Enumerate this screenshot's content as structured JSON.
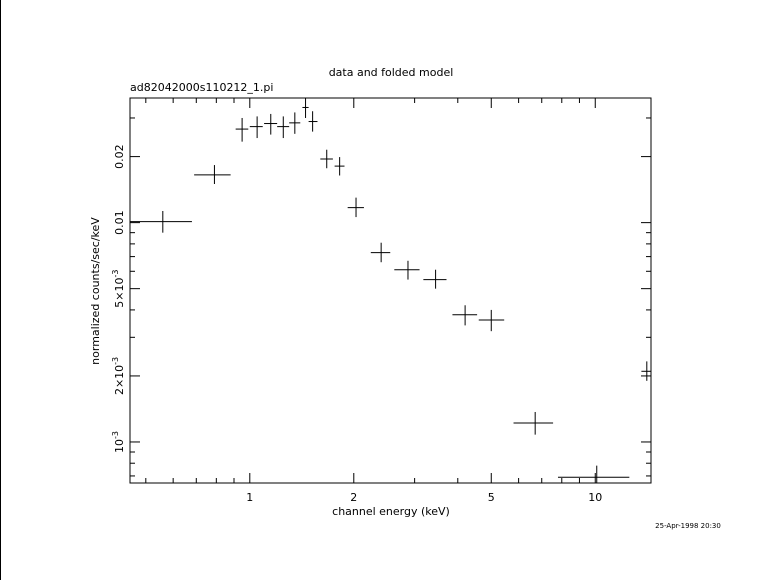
{
  "chart_data": {
    "type": "scatter",
    "title": "data and folded model",
    "subtitle": "ad82042000s110212_1.pi",
    "xlabel": "channel energy (keV)",
    "ylabel": "normalized counts/sec/keV",
    "x_scale": "log",
    "y_scale": "log",
    "xlim": [
      0.45,
      14.5
    ],
    "ylim": [
      0.00065,
      0.037
    ],
    "x_ticks": [
      {
        "value": 1,
        "label": "1"
      },
      {
        "value": 2,
        "label": "2"
      },
      {
        "value": 5,
        "label": "5"
      },
      {
        "value": 10,
        "label": "10"
      }
    ],
    "y_ticks": [
      {
        "value": 0.001,
        "label": "10^-3"
      },
      {
        "value": 0.002,
        "label": "2×10^-3"
      },
      {
        "value": 0.005,
        "label": "5×10^-3"
      },
      {
        "value": 0.01,
        "label": "0.01"
      },
      {
        "value": 0.02,
        "label": "0.02"
      }
    ],
    "series": [
      {
        "points": [
          {
            "x": 0.56,
            "xlo": 0.45,
            "xhi": 0.68,
            "y": 0.0101,
            "ylo": 0.009,
            "yhi": 0.0113
          },
          {
            "x": 0.79,
            "xlo": 0.69,
            "xhi": 0.88,
            "y": 0.0165,
            "ylo": 0.015,
            "yhi": 0.0183
          },
          {
            "x": 0.95,
            "xlo": 0.91,
            "xhi": 0.99,
            "y": 0.0267,
            "ylo": 0.0234,
            "yhi": 0.03
          },
          {
            "x": 1.05,
            "xlo": 1.0,
            "xhi": 1.09,
            "y": 0.0274,
            "ylo": 0.0243,
            "yhi": 0.0305
          },
          {
            "x": 1.15,
            "xlo": 1.1,
            "xhi": 1.2,
            "y": 0.0283,
            "ylo": 0.0252,
            "yhi": 0.0313
          },
          {
            "x": 1.25,
            "xlo": 1.2,
            "xhi": 1.3,
            "y": 0.0274,
            "ylo": 0.0243,
            "yhi": 0.0305
          },
          {
            "x": 1.35,
            "xlo": 1.3,
            "xhi": 1.4,
            "y": 0.0285,
            "ylo": 0.0254,
            "yhi": 0.0318
          },
          {
            "x": 1.45,
            "xlo": 1.42,
            "xhi": 1.48,
            "y": 0.0335,
            "ylo": 0.03,
            "yhi": 0.037
          },
          {
            "x": 1.52,
            "xlo": 1.48,
            "xhi": 1.57,
            "y": 0.0289,
            "ylo": 0.026,
            "yhi": 0.0322
          },
          {
            "x": 1.67,
            "xlo": 1.6,
            "xhi": 1.74,
            "y": 0.0195,
            "ylo": 0.0177,
            "yhi": 0.0215
          },
          {
            "x": 1.82,
            "xlo": 1.76,
            "xhi": 1.88,
            "y": 0.0181,
            "ylo": 0.0164,
            "yhi": 0.0199
          },
          {
            "x": 2.03,
            "xlo": 1.92,
            "xhi": 2.14,
            "y": 0.0117,
            "ylo": 0.0106,
            "yhi": 0.013
          },
          {
            "x": 2.4,
            "xlo": 2.24,
            "xhi": 2.55,
            "y": 0.0073,
            "ylo": 0.0066,
            "yhi": 0.0081
          },
          {
            "x": 2.87,
            "xlo": 2.62,
            "xhi": 3.1,
            "y": 0.0061,
            "ylo": 0.0055,
            "yhi": 0.0067
          },
          {
            "x": 3.45,
            "xlo": 3.18,
            "xhi": 3.71,
            "y": 0.0055,
            "ylo": 0.005,
            "yhi": 0.0061
          },
          {
            "x": 4.2,
            "xlo": 3.86,
            "xhi": 4.55,
            "y": 0.0038,
            "ylo": 0.0034,
            "yhi": 0.0042
          },
          {
            "x": 5.0,
            "xlo": 4.6,
            "xhi": 5.45,
            "y": 0.0036,
            "ylo": 0.0032,
            "yhi": 0.004
          },
          {
            "x": 6.7,
            "xlo": 5.8,
            "xhi": 7.55,
            "y": 0.00122,
            "ylo": 0.00108,
            "yhi": 0.00137
          },
          {
            "x": 10.1,
            "xlo": 7.8,
            "xhi": 12.55,
            "y": 0.00069,
            "ylo": 0.00065,
            "yhi": 0.00078
          },
          {
            "x": 14.1,
            "xlo": 13.6,
            "xhi": 14.6,
            "y": 0.0021,
            "ylo": 0.0019,
            "yhi": 0.00233
          }
        ]
      }
    ],
    "grid": false,
    "legend": "none",
    "colors": {
      "ink": "#000000",
      "background": "#ffffff"
    }
  },
  "footer": {
    "timestamp": "25-Apr-1998 20:30"
  }
}
